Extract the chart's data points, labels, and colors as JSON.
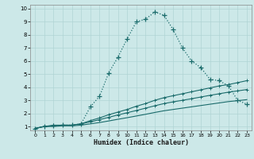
{
  "xlabel": "Humidex (Indice chaleur)",
  "xlim": [
    -0.5,
    23.5
  ],
  "ylim": [
    0.7,
    10.3
  ],
  "xticks": [
    0,
    1,
    2,
    3,
    4,
    5,
    6,
    7,
    8,
    9,
    10,
    11,
    12,
    13,
    14,
    15,
    16,
    17,
    18,
    19,
    20,
    21,
    22,
    23
  ],
  "yticks": [
    1,
    2,
    3,
    4,
    5,
    6,
    7,
    8,
    9,
    10
  ],
  "bg_color": "#cce8e8",
  "line_color": "#1a6b6b",
  "grid_color": "#b0d4d4",
  "main_x": [
    0,
    1,
    2,
    3,
    4,
    5,
    6,
    7,
    8,
    9,
    10,
    11,
    12,
    13,
    14,
    15,
    16,
    17,
    18,
    19,
    20,
    21,
    22,
    23
  ],
  "main_y": [
    0.85,
    1.0,
    1.05,
    1.1,
    1.1,
    1.2,
    2.5,
    3.3,
    5.1,
    6.3,
    7.7,
    9.0,
    9.2,
    9.75,
    9.5,
    8.4,
    7.0,
    6.0,
    5.5,
    4.6,
    4.5,
    4.1,
    3.0,
    2.7
  ],
  "line1_x": [
    0,
    1,
    2,
    3,
    4,
    5,
    6,
    7,
    8,
    9,
    10,
    11,
    12,
    13,
    14,
    15,
    16,
    17,
    18,
    19,
    20,
    21,
    22,
    23
  ],
  "line1_y": [
    0.85,
    1.0,
    1.1,
    1.1,
    1.1,
    1.2,
    1.45,
    1.65,
    1.9,
    2.1,
    2.3,
    2.55,
    2.75,
    3.0,
    3.2,
    3.35,
    3.5,
    3.65,
    3.8,
    3.95,
    4.1,
    4.2,
    4.35,
    4.5
  ],
  "line2_x": [
    0,
    1,
    2,
    3,
    4,
    5,
    6,
    7,
    8,
    9,
    10,
    11,
    12,
    13,
    14,
    15,
    16,
    17,
    18,
    19,
    20,
    21,
    22,
    23
  ],
  "line2_y": [
    0.85,
    1.0,
    1.05,
    1.1,
    1.1,
    1.2,
    1.35,
    1.52,
    1.7,
    1.88,
    2.05,
    2.22,
    2.4,
    2.58,
    2.75,
    2.88,
    3.0,
    3.12,
    3.25,
    3.38,
    3.5,
    3.62,
    3.72,
    3.82
  ],
  "line3_x": [
    0,
    1,
    2,
    3,
    4,
    5,
    6,
    7,
    8,
    9,
    10,
    11,
    12,
    13,
    14,
    15,
    16,
    17,
    18,
    19,
    20,
    21,
    22,
    23
  ],
  "line3_y": [
    0.85,
    1.0,
    1.0,
    1.05,
    1.05,
    1.1,
    1.2,
    1.3,
    1.42,
    1.55,
    1.67,
    1.8,
    1.93,
    2.07,
    2.2,
    2.3,
    2.4,
    2.5,
    2.6,
    2.7,
    2.8,
    2.9,
    2.97,
    3.05
  ]
}
